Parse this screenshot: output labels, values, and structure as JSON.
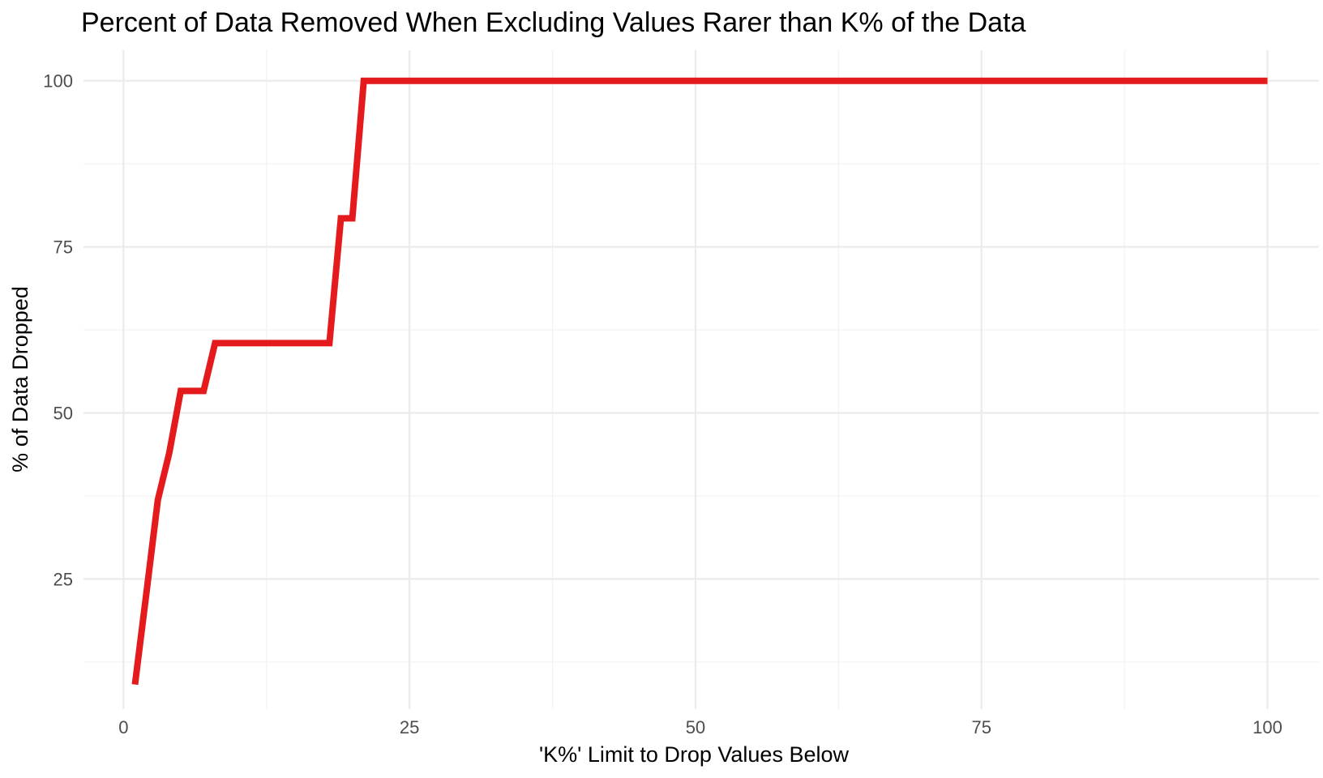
{
  "chart_data": {
    "type": "line",
    "title": "Percent of Data Removed When Excluding Values Rarer than K% of the Data",
    "xlabel": "'K%' Limit to Drop Values Below",
    "ylabel": "% of Data Dropped",
    "xlim": [
      -3.5,
      104.5
    ],
    "ylim": [
      5.4,
      104.6
    ],
    "x_ticks": [
      0,
      25,
      50,
      75,
      100
    ],
    "y_ticks": [
      25,
      50,
      75,
      100
    ],
    "grid": true,
    "legend": "none",
    "color": "#e41a1c",
    "series": [
      {
        "x": [
          1,
          2,
          3,
          4,
          5,
          6,
          7,
          8,
          9,
          10,
          11,
          12,
          13,
          14,
          15,
          16,
          17,
          18,
          19,
          20,
          21,
          22,
          23,
          24,
          25,
          26,
          27,
          28,
          29,
          30,
          31,
          32,
          33,
          34,
          35,
          36,
          37,
          38,
          39,
          40,
          41,
          42,
          43,
          44,
          45,
          46,
          47,
          48,
          49,
          50,
          51,
          52,
          53,
          54,
          55,
          56,
          57,
          58,
          59,
          60,
          61,
          62,
          63,
          64,
          65,
          66,
          67,
          68,
          69,
          70,
          71,
          72,
          73,
          74,
          75,
          76,
          77,
          78,
          79,
          80,
          81,
          82,
          83,
          84,
          85,
          86,
          87,
          88,
          89,
          90,
          91,
          92,
          93,
          94,
          95,
          96,
          97,
          98,
          99,
          100
        ],
        "y": [
          9.1,
          22.9,
          36.9,
          44.0,
          53.3,
          53.3,
          53.3,
          60.5,
          60.5,
          60.5,
          60.5,
          60.5,
          60.5,
          60.5,
          60.5,
          60.5,
          60.5,
          60.5,
          79.3,
          79.3,
          100,
          100,
          100,
          100,
          100,
          100,
          100,
          100,
          100,
          100,
          100,
          100,
          100,
          100,
          100,
          100,
          100,
          100,
          100,
          100,
          100,
          100,
          100,
          100,
          100,
          100,
          100,
          100,
          100,
          100,
          100,
          100,
          100,
          100,
          100,
          100,
          100,
          100,
          100,
          100,
          100,
          100,
          100,
          100,
          100,
          100,
          100,
          100,
          100,
          100,
          100,
          100,
          100,
          100,
          100,
          100,
          100,
          100,
          100,
          100,
          100,
          100,
          100,
          100,
          100,
          100,
          100,
          100,
          100,
          100,
          100,
          100,
          100,
          100,
          100,
          100,
          100,
          100,
          100,
          100
        ]
      }
    ]
  }
}
